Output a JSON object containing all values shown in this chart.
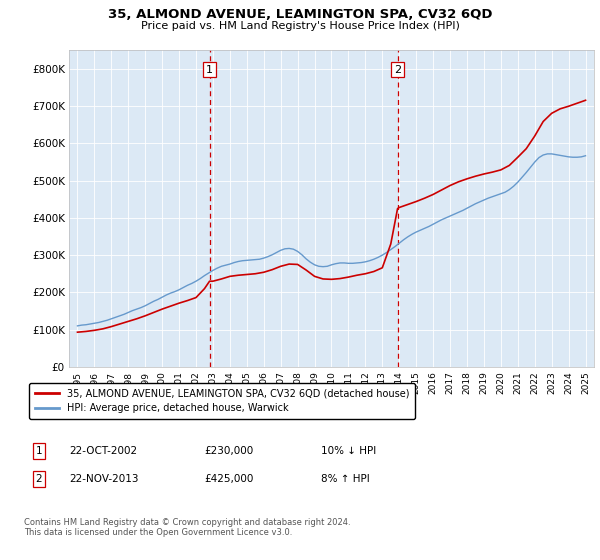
{
  "title": "35, ALMOND AVENUE, LEAMINGTON SPA, CV32 6QD",
  "subtitle": "Price paid vs. HM Land Registry's House Price Index (HPI)",
  "background_color": "#ffffff",
  "plot_bg_color": "#dce9f5",
  "ylim": [
    0,
    850000
  ],
  "yticks": [
    0,
    100000,
    200000,
    300000,
    400000,
    500000,
    600000,
    700000,
    800000
  ],
  "ytick_labels": [
    "£0",
    "£100K",
    "£200K",
    "£300K",
    "£400K",
    "£500K",
    "£600K",
    "£700K",
    "£800K"
  ],
  "xlabel_years": [
    1995,
    1996,
    1997,
    1998,
    1999,
    2000,
    2001,
    2002,
    2003,
    2004,
    2005,
    2006,
    2007,
    2008,
    2009,
    2010,
    2011,
    2012,
    2013,
    2014,
    2015,
    2016,
    2017,
    2018,
    2019,
    2020,
    2021,
    2022,
    2023,
    2024,
    2025
  ],
  "hpi_color": "#6699cc",
  "price_color": "#cc0000",
  "annotation_box_color": "#cc0000",
  "vline_color": "#cc0000",
  "sale1_year": 2002.8,
  "sale1_price": 230000,
  "sale1_label": "1",
  "sale2_year": 2013.9,
  "sale2_price": 425000,
  "sale2_label": "2",
  "legend_label_price": "35, ALMOND AVENUE, LEAMINGTON SPA, CV32 6QD (detached house)",
  "legend_label_hpi": "HPI: Average price, detached house, Warwick",
  "table_row1": [
    "1",
    "22-OCT-2002",
    "£230,000",
    "10% ↓ HPI"
  ],
  "table_row2": [
    "2",
    "22-NOV-2013",
    "£425,000",
    "8% ↑ HPI"
  ],
  "footer": "Contains HM Land Registry data © Crown copyright and database right 2024.\nThis data is licensed under the Open Government Licence v3.0.",
  "hpi_data_x": [
    1995,
    1995.25,
    1995.5,
    1995.75,
    1996,
    1996.25,
    1996.5,
    1996.75,
    1997,
    1997.25,
    1997.5,
    1997.75,
    1998,
    1998.25,
    1998.5,
    1998.75,
    1999,
    1999.25,
    1999.5,
    1999.75,
    2000,
    2000.25,
    2000.5,
    2000.75,
    2001,
    2001.25,
    2001.5,
    2001.75,
    2002,
    2002.25,
    2002.5,
    2002.75,
    2003,
    2003.25,
    2003.5,
    2003.75,
    2004,
    2004.25,
    2004.5,
    2004.75,
    2005,
    2005.25,
    2005.5,
    2005.75,
    2006,
    2006.25,
    2006.5,
    2006.75,
    2007,
    2007.25,
    2007.5,
    2007.75,
    2008,
    2008.25,
    2008.5,
    2008.75,
    2009,
    2009.25,
    2009.5,
    2009.75,
    2010,
    2010.25,
    2010.5,
    2010.75,
    2011,
    2011.25,
    2011.5,
    2011.75,
    2012,
    2012.25,
    2012.5,
    2012.75,
    2013,
    2013.25,
    2013.5,
    2013.75,
    2014,
    2014.25,
    2014.5,
    2014.75,
    2015,
    2015.25,
    2015.5,
    2015.75,
    2016,
    2016.25,
    2016.5,
    2016.75,
    2017,
    2017.25,
    2017.5,
    2017.75,
    2018,
    2018.25,
    2018.5,
    2018.75,
    2019,
    2019.25,
    2019.5,
    2019.75,
    2020,
    2020.25,
    2020.5,
    2020.75,
    2021,
    2021.25,
    2021.5,
    2021.75,
    2022,
    2022.25,
    2022.5,
    2022.75,
    2023,
    2023.25,
    2023.5,
    2023.75,
    2024,
    2024.25,
    2024.5,
    2024.75,
    2025
  ],
  "hpi_data_y": [
    110000,
    112000,
    113000,
    115000,
    117000,
    119000,
    122000,
    125000,
    129000,
    133000,
    137000,
    141000,
    146000,
    151000,
    155000,
    159000,
    164000,
    170000,
    176000,
    181000,
    187000,
    193000,
    198000,
    202000,
    207000,
    213000,
    219000,
    224000,
    230000,
    237000,
    245000,
    252000,
    259000,
    265000,
    270000,
    273000,
    276000,
    280000,
    283000,
    285000,
    286000,
    287000,
    288000,
    289000,
    292000,
    296000,
    301000,
    307000,
    313000,
    317000,
    318000,
    316000,
    310000,
    301000,
    290000,
    281000,
    274000,
    270000,
    269000,
    270000,
    274000,
    277000,
    279000,
    279000,
    278000,
    278000,
    279000,
    280000,
    282000,
    285000,
    289000,
    294000,
    300000,
    307000,
    315000,
    323000,
    332000,
    341000,
    349000,
    356000,
    362000,
    367000,
    372000,
    377000,
    383000,
    389000,
    395000,
    400000,
    405000,
    410000,
    415000,
    420000,
    426000,
    432000,
    438000,
    443000,
    448000,
    453000,
    457000,
    461000,
    465000,
    469000,
    476000,
    485000,
    496000,
    509000,
    522000,
    536000,
    550000,
    562000,
    569000,
    572000,
    572000,
    570000,
    568000,
    566000,
    564000,
    563000,
    563000,
    564000,
    567000
  ],
  "price_data_x": [
    1995,
    1995.5,
    1996,
    1996.5,
    1997,
    1997.5,
    1998,
    1998.5,
    1999,
    1999.5,
    2000,
    2000.5,
    2001,
    2001.5,
    2002,
    2002.5,
    2002.8,
    2003,
    2003.5,
    2004,
    2004.5,
    2005,
    2005.5,
    2006,
    2006.5,
    2007,
    2007.5,
    2008,
    2008.5,
    2009,
    2009.5,
    2010,
    2010.5,
    2011,
    2011.5,
    2012,
    2012.5,
    2013,
    2013.5,
    2013.9,
    2014,
    2014.5,
    2015,
    2015.5,
    2016,
    2016.5,
    2017,
    2017.5,
    2018,
    2018.5,
    2019,
    2019.5,
    2020,
    2020.5,
    2021,
    2021.5,
    2022,
    2022.5,
    2023,
    2023.5,
    2024,
    2024.5,
    2025
  ],
  "price_data_y": [
    93000,
    95000,
    98000,
    102000,
    108000,
    115000,
    122000,
    129000,
    137000,
    146000,
    155000,
    163000,
    171000,
    178000,
    186000,
    210000,
    230000,
    230000,
    236000,
    243000,
    246000,
    248000,
    250000,
    254000,
    261000,
    270000,
    276000,
    275000,
    260000,
    243000,
    236000,
    235000,
    237000,
    241000,
    246000,
    250000,
    256000,
    266000,
    330000,
    425000,
    428000,
    436000,
    444000,
    453000,
    463000,
    475000,
    487000,
    497000,
    505000,
    512000,
    518000,
    523000,
    529000,
    541000,
    563000,
    586000,
    620000,
    659000,
    681000,
    693000,
    700000,
    708000,
    716000
  ]
}
